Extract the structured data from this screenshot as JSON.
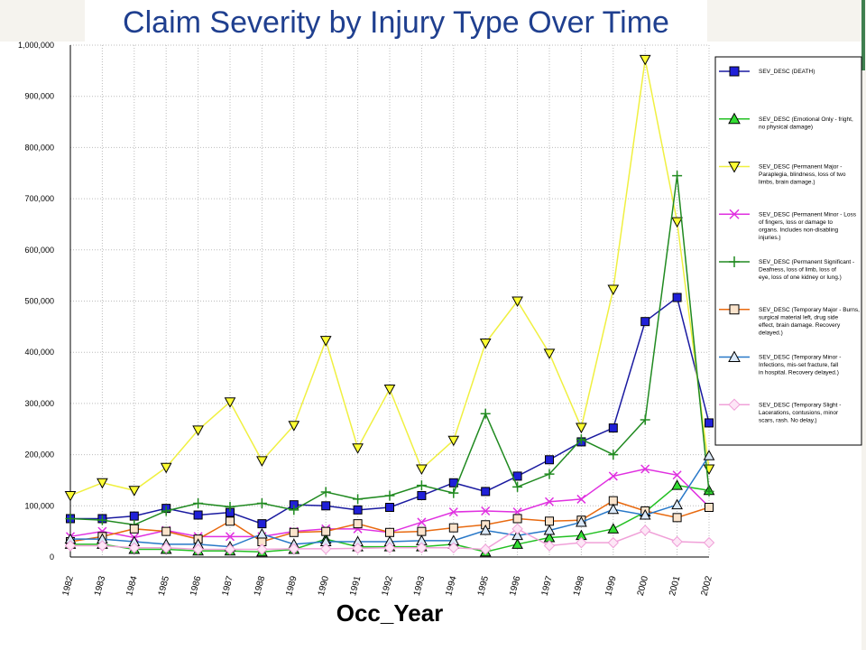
{
  "chart_data": {
    "type": "line",
    "title": "Claim Severity by Injury Type Over Time",
    "xlabel": "Occ_Year",
    "ylabel": "",
    "x": [
      "1982",
      "1983",
      "1984",
      "1985",
      "1986",
      "1987",
      "1988",
      "1989",
      "1990",
      "1991",
      "1992",
      "1993",
      "1994",
      "1995",
      "1996",
      "1997",
      "1998",
      "1999",
      "2000",
      "2001",
      "2002"
    ],
    "ylim": [
      0,
      1000000
    ],
    "yticks": [
      "0",
      "100,000",
      "200,000",
      "300,000",
      "400,000",
      "500,000",
      "600,000",
      "700,000",
      "800,000",
      "900,000",
      "1,000,000"
    ],
    "grid": true,
    "legend_position": "right",
    "series": [
      {
        "name": "SEV_DESC (DEATH)",
        "color": "#1a1aa0",
        "marker_fill": "#2020d8",
        "marker": "square",
        "values": [
          75000,
          75000,
          80000,
          95000,
          82000,
          87000,
          65000,
          102000,
          100000,
          92000,
          97000,
          120000,
          145000,
          128000,
          158000,
          190000,
          225000,
          252000,
          460000,
          507000,
          262000
        ]
      },
      {
        "name": "SEV_DESC (Emotional Only - fright, no physical damage)",
        "color": "#22c022",
        "marker_fill": "#33dd33",
        "marker": "triangle-up",
        "values": [
          25000,
          25000,
          15000,
          15000,
          12000,
          12000,
          10000,
          15000,
          35000,
          20000,
          20000,
          20000,
          25000,
          10000,
          25000,
          38000,
          42000,
          55000,
          88000,
          140000,
          130000
        ]
      },
      {
        "name": "SEV_DESC (Permanent Major - Paraplegia, blindness, loss of two limbs, brain damage.)",
        "color": "#f0f040",
        "marker_fill": "#ffff33",
        "marker": "triangle-down",
        "values": [
          120000,
          145000,
          130000,
          175000,
          248000,
          303000,
          188000,
          257000,
          423000,
          213000,
          328000,
          172000,
          228000,
          418000,
          500000,
          398000,
          253000,
          523000,
          972000,
          655000,
          172000
        ]
      },
      {
        "name": "SEV_DESC (Permanent Minor - Loss of fingers, loss or damage to organs. Includes non-disabling injuries.)",
        "color": "#e030e0",
        "marker_fill": "#e030e0",
        "marker": "x",
        "values": [
          40000,
          50000,
          38000,
          52000,
          40000,
          40000,
          40000,
          50000,
          55000,
          55000,
          48000,
          68000,
          88000,
          90000,
          88000,
          108000,
          113000,
          158000,
          172000,
          160000,
          98000
        ]
      },
      {
        "name": "SEV_DESC (Permanent Significant - Deafness, loss of limb, loss of eye, loss of one kidney or lung.)",
        "color": "#208a20",
        "marker_fill": "#208a20",
        "marker": "plus",
        "values": [
          75000,
          72000,
          63000,
          90000,
          105000,
          98000,
          105000,
          92000,
          127000,
          113000,
          120000,
          140000,
          125000,
          280000,
          137000,
          162000,
          230000,
          200000,
          268000,
          745000,
          128000
        ]
      },
      {
        "name": "SEV_DESC (Temporary Major - Burns, surgical material left, drug side effect, brain damage. Recovery delayed.)",
        "color": "#e86a10",
        "marker_fill": "#fbe4cc",
        "marker": "square",
        "values": [
          30000,
          40000,
          55000,
          50000,
          35000,
          70000,
          30000,
          48000,
          50000,
          65000,
          48000,
          50000,
          57000,
          63000,
          75000,
          70000,
          72000,
          110000,
          90000,
          77000,
          97000
        ]
      },
      {
        "name": "SEV_DESC (Temporary Minor - Infections, mis-set fracture, fall in hospital. Recovery delayed.)",
        "color": "#2878c8",
        "marker_fill": "#dbe9f8",
        "marker": "triangle-up",
        "values": [
          35000,
          35000,
          30000,
          25000,
          25000,
          20000,
          45000,
          25000,
          30000,
          30000,
          30000,
          32000,
          32000,
          52000,
          42000,
          52000,
          68000,
          93000,
          82000,
          102000,
          198000
        ]
      },
      {
        "name": "SEV_DESC (Temporary Slight - Lacerations, contusions, minor scars, rash. No delay.)",
        "color": "#f0a0d8",
        "marker_fill": "#fde6f6",
        "marker": "diamond",
        "values": [
          22000,
          22000,
          18000,
          18000,
          15000,
          15000,
          15000,
          16000,
          16000,
          17000,
          18000,
          18000,
          18000,
          15000,
          55000,
          22000,
          28000,
          28000,
          52000,
          30000,
          28000
        ]
      }
    ]
  }
}
